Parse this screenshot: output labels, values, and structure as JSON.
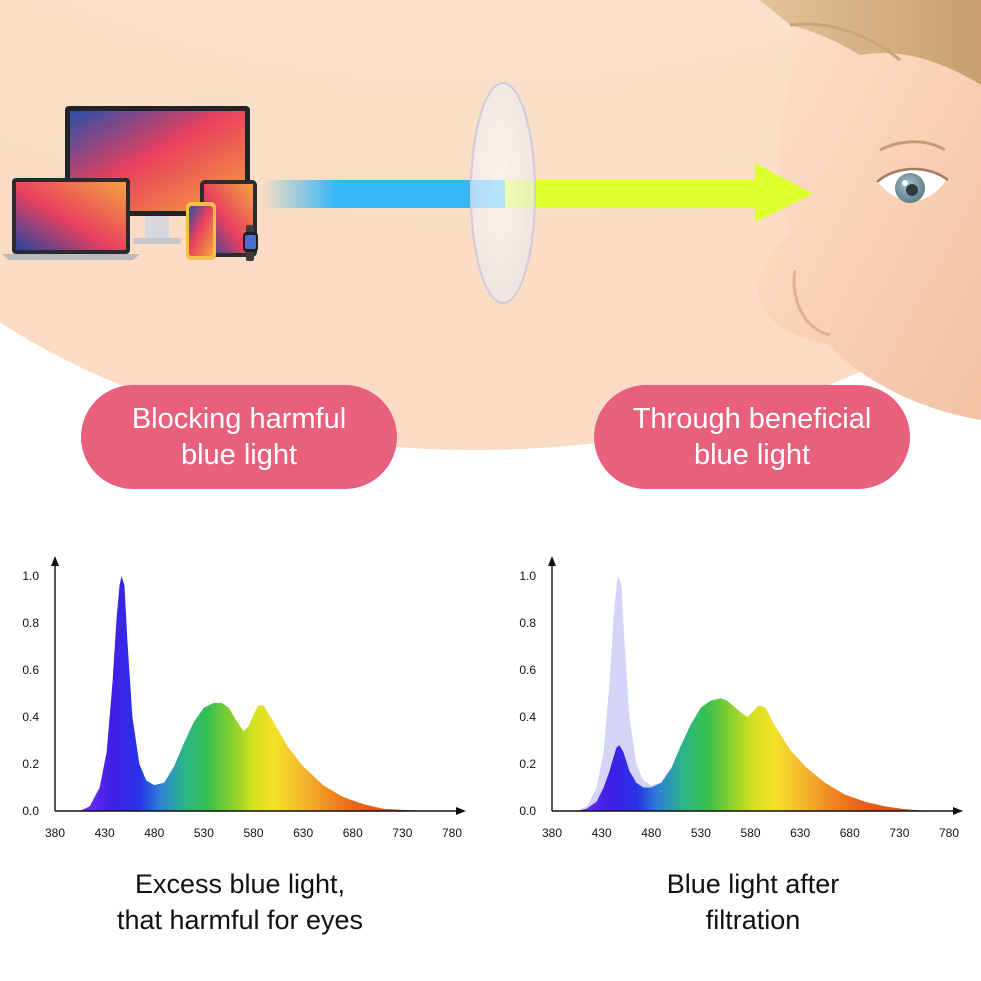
{
  "labels": {
    "left_pill": [
      "Blocking harmful",
      "blue light"
    ],
    "right_pill": [
      "Through beneficial",
      "blue light"
    ]
  },
  "colors": {
    "pill": "#e9607d",
    "hero_background": "#fbe6d4",
    "beam_blocked": "#37b8f5",
    "beam_passed": "#dcff2e",
    "ghost_curve": "#c9c9f4"
  },
  "icons": [
    "monitor-icon",
    "laptop-icon",
    "tablet-icon",
    "phone-icon",
    "smartwatch-icon",
    "lens-icon",
    "arrow-icon",
    "child-face-icon"
  ],
  "chart_data": [
    {
      "type": "area",
      "caption": [
        "Excess blue light,",
        "that harmful for eyes"
      ],
      "x_ticks": [
        380,
        430,
        480,
        530,
        580,
        630,
        680,
        730,
        780
      ],
      "y_ticks": [
        "0.0",
        "0.2",
        "0.4",
        "0.6",
        "0.8",
        "1.0"
      ],
      "xlim": [
        380,
        780
      ],
      "ylim": [
        0,
        1
      ],
      "x": [
        405,
        415,
        425,
        432,
        438,
        442,
        445,
        447,
        450,
        453,
        458,
        465,
        472,
        480,
        490,
        500,
        510,
        520,
        530,
        540,
        548,
        555,
        562,
        570,
        575,
        580,
        585,
        590,
        600,
        615,
        630,
        650,
        670,
        690,
        710,
        730,
        745,
        755
      ],
      "y": [
        0,
        0.02,
        0.1,
        0.25,
        0.55,
        0.82,
        0.96,
        1.0,
        0.96,
        0.72,
        0.4,
        0.2,
        0.13,
        0.11,
        0.12,
        0.19,
        0.29,
        0.38,
        0.44,
        0.46,
        0.46,
        0.44,
        0.39,
        0.34,
        0.36,
        0.41,
        0.45,
        0.45,
        0.38,
        0.27,
        0.19,
        0.11,
        0.06,
        0.03,
        0.01,
        0.005,
        0.002,
        0
      ]
    },
    {
      "type": "area",
      "caption": [
        "Blue light after",
        "filtration"
      ],
      "x_ticks": [
        380,
        430,
        480,
        530,
        580,
        630,
        680,
        730,
        780
      ],
      "y_ticks": [
        "0.0",
        "0.2",
        "0.4",
        "0.6",
        "0.8",
        "1.0"
      ],
      "xlim": [
        380,
        780
      ],
      "ylim": [
        0,
        1
      ],
      "series": [
        {
          "role": "before-filter",
          "x": [
            405,
            415,
            425,
            432,
            438,
            442,
            445,
            447,
            450,
            453,
            458,
            465,
            472,
            480,
            490,
            500
          ],
          "y": [
            0,
            0.02,
            0.1,
            0.25,
            0.55,
            0.82,
            0.96,
            1.0,
            0.96,
            0.72,
            0.4,
            0.2,
            0.13,
            0.11,
            0.12,
            0.19
          ]
        },
        {
          "role": "after-filter",
          "x": [
            405,
            415,
            425,
            432,
            438,
            442,
            445,
            448,
            452,
            458,
            465,
            472,
            480,
            490,
            500,
            510,
            520,
            530,
            540,
            550,
            556,
            562,
            570,
            577,
            582,
            588,
            595,
            605,
            620,
            635,
            655,
            675,
            695,
            715,
            735,
            750,
            760
          ],
          "y": [
            0,
            0.01,
            0.04,
            0.1,
            0.17,
            0.23,
            0.27,
            0.28,
            0.25,
            0.17,
            0.12,
            0.1,
            0.1,
            0.12,
            0.18,
            0.28,
            0.37,
            0.44,
            0.47,
            0.48,
            0.47,
            0.45,
            0.42,
            0.4,
            0.42,
            0.45,
            0.44,
            0.36,
            0.26,
            0.19,
            0.12,
            0.07,
            0.04,
            0.02,
            0.008,
            0.003,
            0
          ]
        }
      ]
    }
  ]
}
